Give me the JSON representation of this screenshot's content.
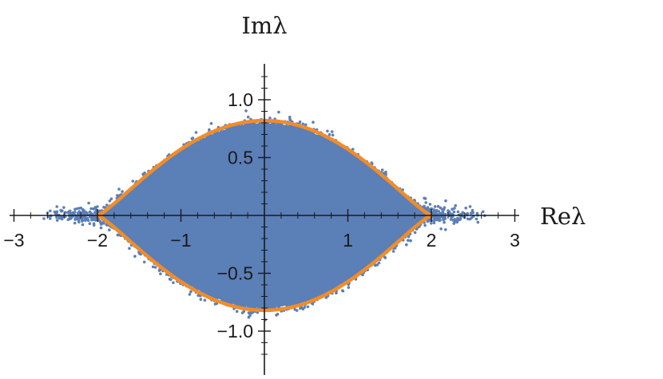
{
  "chart_data": {
    "type": "scatter",
    "title": "",
    "xlabel": "Reλ",
    "ylabel": "Imλ",
    "xlim": [
      -3,
      3
    ],
    "ylim": [
      -1.3,
      1.3
    ],
    "x_ticks": [
      -3,
      -2,
      -1,
      1,
      2,
      3
    ],
    "x_tick_labels": [
      "−3",
      "−2",
      "−1",
      "1",
      "2",
      "3"
    ],
    "y_ticks": [
      1.0,
      0.5,
      -0.5,
      -1.0
    ],
    "y_tick_labels": [
      "1.0",
      "0.5",
      "−0.5",
      "−1.0"
    ],
    "grid": false,
    "legend": "none",
    "colors": {
      "points": "#5b7fb7",
      "boundary": "#f28c28",
      "axes": "#1a1a1a"
    },
    "series": [
      {
        "kind": "eigenvalue-cloud",
        "approx_support_x": [
          -2.6,
          2.6
        ],
        "approx_support_y": [
          -0.9,
          0.9
        ]
      },
      {
        "kind": "boundary-curve",
        "x": [
          -2.0,
          -1.8,
          -1.5,
          -1.2,
          -1.0,
          -0.5,
          0.0,
          0.5,
          1.0,
          1.2,
          1.5,
          1.8,
          2.0
        ],
        "y": [
          0.0,
          0.14,
          0.34,
          0.52,
          0.62,
          0.78,
          0.82,
          0.78,
          0.62,
          0.52,
          0.34,
          0.14,
          0.0
        ]
      }
    ]
  }
}
